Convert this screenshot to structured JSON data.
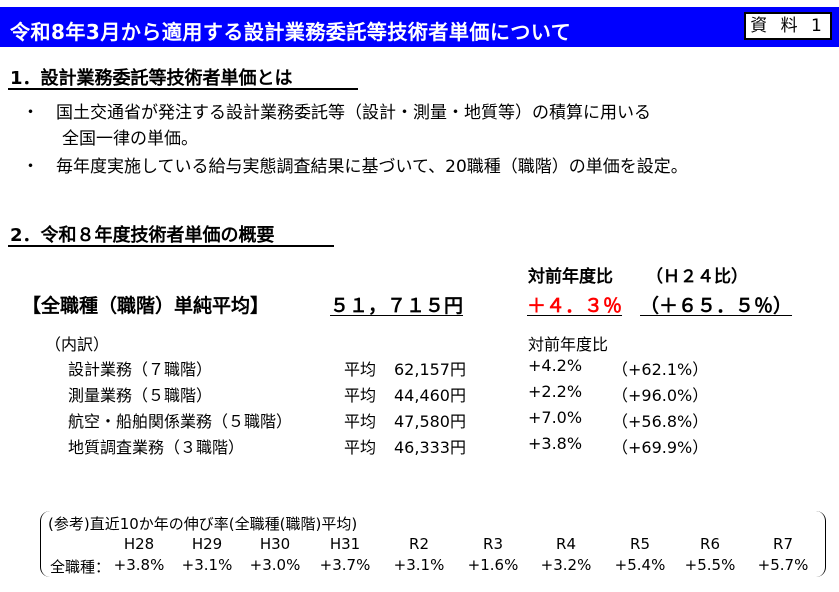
{
  "header": {
    "title": "令和8年3月から適用する設計業務委託等技術者単価について",
    "doc_label": "資 料 1"
  },
  "section1": {
    "heading": "1．設計業務委託等技術者単価とは",
    "bullet_mark": "・",
    "bullet1_line1": "国土交通省が発注する設計業務委託等（設計・測量・地質等）の積算に用いる",
    "bullet1_line2": "全国一律の単価。",
    "bullet2": "毎年度実施している給与実態調査結果に基づいて、20職種（職階）の単価を設定。"
  },
  "section2": {
    "heading": "2．令和８年度技術者単価の概要",
    "compare_header": "対前年度比",
    "compare_h24_header": "（Ｈ２４比）",
    "overall_label": "【全職種（職階）単純平均】",
    "overall_value": "５１，７１５円",
    "overall_change": "＋４．３％",
    "overall_change_h24": "（＋６５．５％）",
    "breakdown_label": "（内訳）",
    "breakdown_compare_header": "対前年度比",
    "rows": [
      {
        "name": "設計業務（７職階）",
        "avg_label": "平均",
        "value": "62,157円",
        "change": "+4.2%",
        "change_h24": "（+62.1%）"
      },
      {
        "name": "測量業務（５職階）",
        "avg_label": "平均",
        "value": "44,460円",
        "change": "+2.2%",
        "change_h24": "（+96.0%）"
      },
      {
        "name": "航空・船舶関係業務（５職階）",
        "avg_label": "平均",
        "value": "47,580円",
        "change": "+7.0%",
        "change_h24": "（+56.8%）"
      },
      {
        "name": "地質調査業務（３職階）",
        "avg_label": "平均",
        "value": "46,333円",
        "change": "+3.8%",
        "change_h24": "（+69.9%）"
      }
    ]
  },
  "reference": {
    "title": "(参考)直近10か年の伸び率(全職種(職階)平均)",
    "row_label": "全職種：",
    "years": [
      "H28",
      "H29",
      "H30",
      "H31",
      "R2",
      "R3",
      "R4",
      "R5",
      "R6",
      "R7"
    ],
    "rates": [
      "+3.8%",
      "+3.1%",
      "+3.0%",
      "+3.7%",
      "+3.1%",
      "+1.6%",
      "+3.2%",
      "+5.4%",
      "+5.5%",
      "+5.7%"
    ]
  },
  "colors": {
    "title_bar": "#0000ff",
    "highlight": "#ff0000"
  }
}
